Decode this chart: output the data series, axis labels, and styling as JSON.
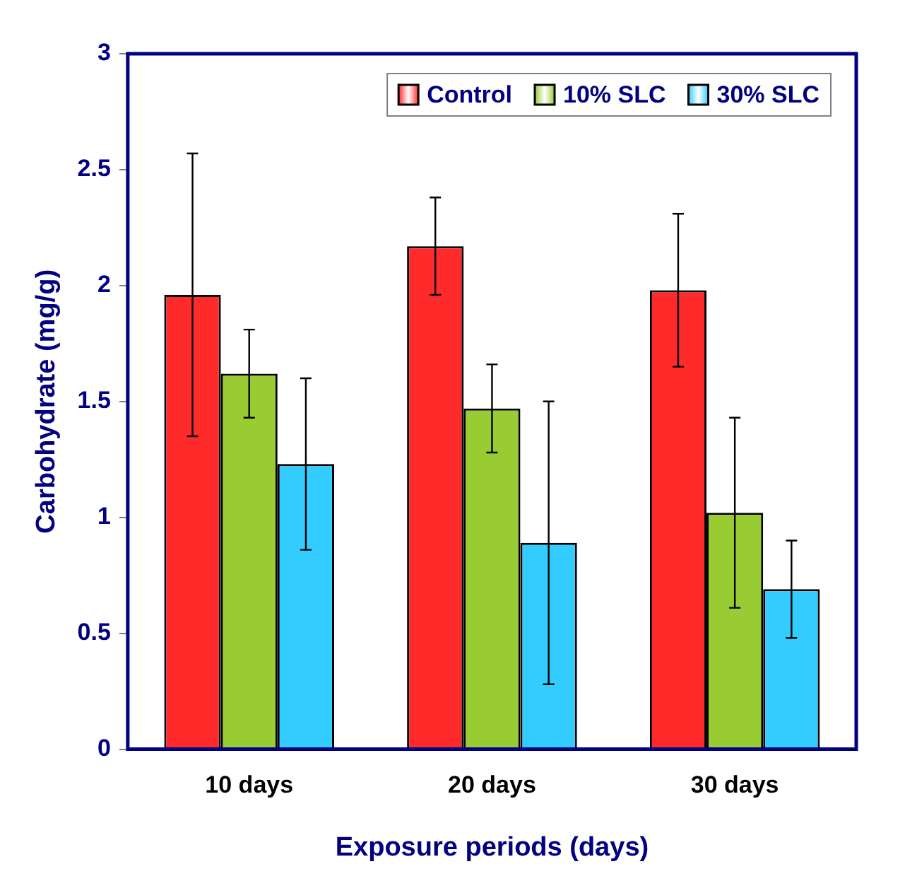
{
  "chart_data": {
    "type": "bar",
    "xlabel": "Exposure periods (days)",
    "ylabel": "Carbohydrate (mg/g)",
    "categories": [
      "10 days",
      "20 days",
      "30 days"
    ],
    "series": [
      {
        "name": "Control",
        "color": "#ff2a2a",
        "values": [
          1.96,
          2.17,
          1.98
        ],
        "errors": [
          [
            1.35,
            2.57
          ],
          [
            1.96,
            2.38
          ],
          [
            1.65,
            2.31
          ]
        ]
      },
      {
        "name": "10% SLC",
        "color": "#99cc33",
        "values": [
          1.62,
          1.47,
          1.02
        ],
        "errors": [
          [
            1.43,
            1.81
          ],
          [
            1.28,
            1.66
          ],
          [
            0.61,
            1.43
          ]
        ]
      },
      {
        "name": "30% SLC",
        "color": "#33ccff",
        "values": [
          1.23,
          0.89,
          0.69
        ],
        "errors": [
          [
            0.86,
            1.6
          ],
          [
            0.28,
            1.5
          ],
          [
            0.48,
            0.9
          ]
        ]
      }
    ],
    "ylim": [
      0,
      3
    ],
    "yticks": [
      0,
      0.5,
      1,
      1.5,
      2,
      2.5,
      3
    ],
    "grid": false,
    "legend": "top right"
  }
}
